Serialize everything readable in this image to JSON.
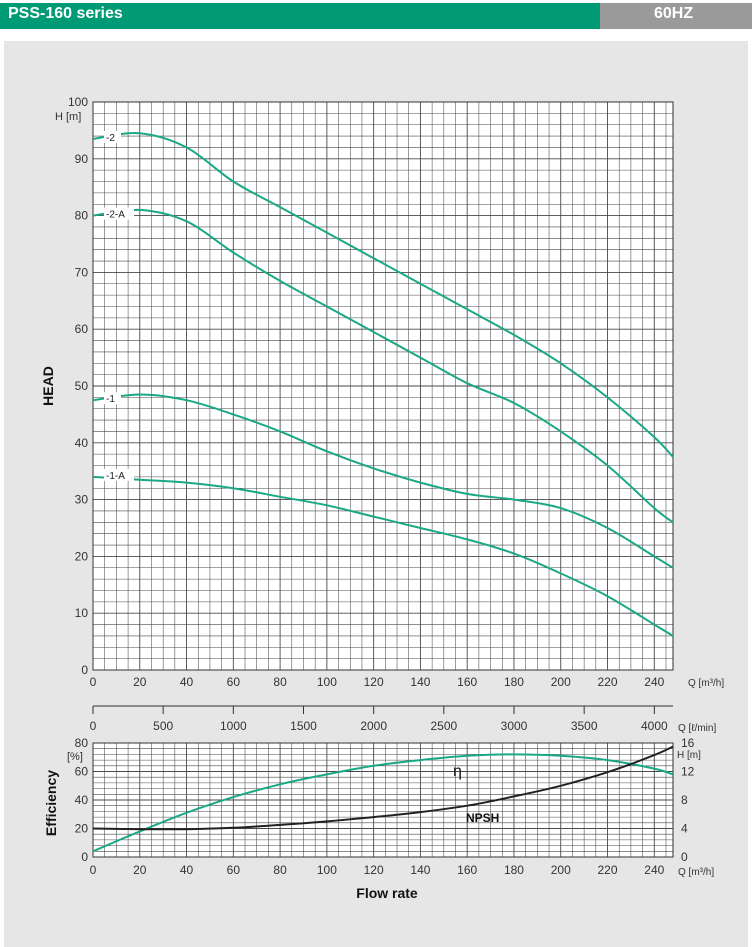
{
  "header": {
    "title": "PSS-160 series",
    "frequency": "60HZ",
    "title_color": "#009b74",
    "frequency_color": "#9a9a9a"
  },
  "colors": {
    "curve": "#1aa886",
    "npsh": "#222222",
    "grid": "#4a4a4a",
    "background": "#e6e6e6"
  },
  "chart_data": [
    {
      "type": "line",
      "title": "",
      "ylabel": "HEAD",
      "y_unit": "H [m]",
      "x_unit": "Q [m³/h]",
      "xlim": [
        0,
        248
      ],
      "ylim": [
        0,
        100
      ],
      "x_ticks": [
        0,
        20,
        40,
        60,
        80,
        100,
        120,
        140,
        160,
        180,
        200,
        220,
        240
      ],
      "y_ticks": [
        0,
        10,
        20,
        30,
        40,
        50,
        60,
        70,
        80,
        90,
        100
      ],
      "grid": true,
      "series": [
        {
          "name": "-2",
          "x": [
            0,
            20,
            40,
            60,
            80,
            100,
            120,
            140,
            160,
            180,
            200,
            220,
            240,
            248
          ],
          "y": [
            93.5,
            94.5,
            92,
            86,
            81.5,
            77,
            72.5,
            68,
            63.5,
            59,
            54,
            48,
            41,
            37.5
          ]
        },
        {
          "name": "-2-A",
          "x": [
            0,
            20,
            40,
            60,
            80,
            100,
            120,
            140,
            160,
            180,
            200,
            220,
            240,
            248
          ],
          "y": [
            80,
            81,
            79,
            73.5,
            68.5,
            64,
            59.5,
            55,
            50.5,
            47,
            42,
            36,
            28.5,
            26
          ]
        },
        {
          "name": "-1",
          "x": [
            0,
            20,
            40,
            60,
            80,
            100,
            120,
            140,
            160,
            180,
            200,
            220,
            240,
            248
          ],
          "y": [
            47.5,
            48.5,
            47.5,
            45,
            42,
            38.5,
            35.5,
            33,
            31,
            30,
            28.5,
            25,
            20,
            18
          ]
        },
        {
          "name": "-1-A",
          "x": [
            0,
            20,
            40,
            60,
            80,
            100,
            120,
            140,
            160,
            180,
            200,
            220,
            240,
            248
          ],
          "y": [
            34,
            33.5,
            33,
            32,
            30.5,
            29,
            27,
            25,
            23,
            20.5,
            17,
            13,
            8,
            6
          ]
        }
      ]
    },
    {
      "type": "line",
      "title": "",
      "x_unit": "Q [ℓ/min]",
      "xlim": [
        0,
        4133
      ],
      "x_ticks": [
        0,
        500,
        1000,
        1500,
        2000,
        2500,
        3000,
        3500,
        4000
      ]
    },
    {
      "type": "line",
      "title": "",
      "xlabel": "Flow rate",
      "ylabel": "Efficiency",
      "y_unit": "[%]",
      "y2_unit": "H [m]",
      "x_unit": "Q [m³/h]",
      "xlim": [
        0,
        248
      ],
      "ylim": [
        0,
        80
      ],
      "y2lim": [
        0,
        16
      ],
      "x_ticks": [
        0,
        20,
        40,
        60,
        80,
        100,
        120,
        140,
        160,
        180,
        200,
        220,
        240
      ],
      "y_ticks": [
        0,
        20,
        40,
        60,
        80
      ],
      "y2_ticks": [
        0,
        4,
        8,
        12,
        16
      ],
      "grid": true,
      "series": [
        {
          "name": "η",
          "axis": "left",
          "x": [
            0,
            20,
            40,
            60,
            80,
            100,
            120,
            140,
            160,
            180,
            200,
            220,
            240,
            248
          ],
          "y": [
            4,
            18,
            31,
            42,
            51,
            58,
            64,
            68,
            71,
            72,
            71,
            68,
            62,
            58
          ]
        },
        {
          "name": "NPSH",
          "axis": "right",
          "x": [
            0,
            20,
            40,
            60,
            80,
            100,
            120,
            140,
            160,
            180,
            200,
            220,
            240,
            248
          ],
          "y": [
            4,
            3.9,
            3.9,
            4.1,
            4.5,
            5,
            5.6,
            6.3,
            7.2,
            8.5,
            10,
            11.9,
            14.3,
            15.5
          ]
        }
      ]
    }
  ]
}
